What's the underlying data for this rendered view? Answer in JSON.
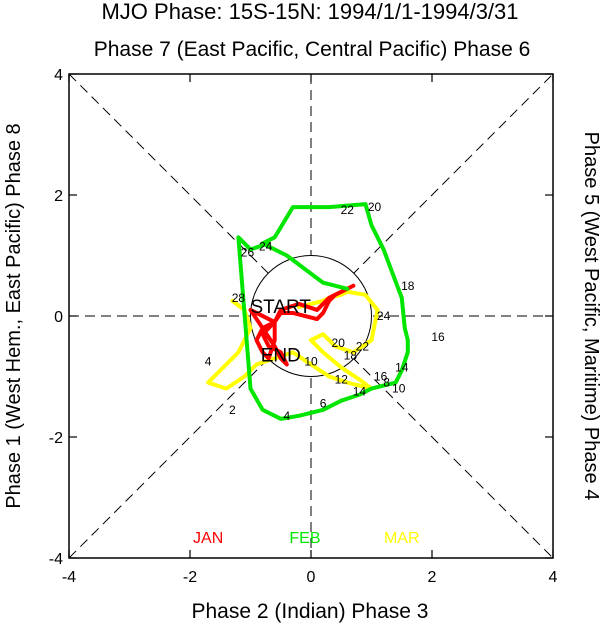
{
  "chart_data": {
    "type": "line",
    "title": "MJO Phase: 15S-15N: 1994/1/1-1994/3/31",
    "top_label": "Phase 7 (East Pacific, Central Pacific) Phase 6",
    "bottom_label": "Phase 2 (Indian) Phase 3",
    "left_label": "Phase 1 (West Hem., East Pacific) Phase 8",
    "right_label": "Phase 5 (West Pacific, Maritime) Phase 4",
    "xlim": [
      -4,
      4
    ],
    "ylim": [
      -4,
      4
    ],
    "x_ticks": [
      "-4",
      "-2",
      "0",
      "2",
      "4"
    ],
    "y_ticks": [
      "-4",
      "-2",
      "0",
      "2",
      "4"
    ],
    "unit_circle_radius": 1,
    "start_label": "START",
    "end_label": "END",
    "series": [
      {
        "name": "JAN",
        "color": "#ff0000",
        "x": [
          0.7,
          0.4,
          0.3,
          0.2,
          0.1,
          -0.1,
          -0.3,
          -0.5,
          -0.6,
          -0.8,
          -0.9,
          -0.8,
          -0.7,
          -0.6,
          -0.6,
          -0.9,
          -1.0,
          -0.8,
          -0.6,
          -0.5,
          -0.4,
          -0.5,
          -0.7,
          -0.8,
          -0.6,
          -0.5,
          -0.2,
          0.1,
          0.3,
          0.5,
          0.6
        ],
        "y": [
          0.5,
          0.35,
          0.25,
          0.05,
          -0.05,
          0.0,
          0.05,
          0.05,
          -0.1,
          -0.2,
          -0.4,
          -0.6,
          -0.7,
          -0.4,
          -0.1,
          0.05,
          0.1,
          -0.2,
          -0.5,
          -0.7,
          -0.8,
          -0.6,
          -0.5,
          -0.3,
          -0.1,
          0.1,
          0.2,
          0.1,
          0.3,
          0.4,
          0.45
        ]
      },
      {
        "name": "FEB",
        "color": "#00e600",
        "x": [
          0.6,
          0.2,
          -0.4,
          -0.8,
          -0.6,
          -0.3,
          0.3,
          0.9,
          1.0,
          1.2,
          1.35,
          1.5,
          1.55,
          1.6,
          1.6,
          1.5,
          1.4,
          1.2,
          1.0,
          0.8,
          0.5,
          0.2,
          0.0,
          -0.2,
          -0.5,
          -0.8,
          -1.0,
          -1.2,
          -1.0,
          -0.7
        ],
        "y": [
          0.45,
          0.55,
          1.0,
          1.2,
          1.3,
          1.8,
          1.8,
          1.85,
          1.5,
          1.1,
          0.7,
          0.3,
          -0.2,
          -0.4,
          -0.6,
          -0.9,
          -1.1,
          -1.15,
          -1.2,
          -1.3,
          -1.4,
          -1.55,
          -1.6,
          -1.65,
          -1.7,
          -1.55,
          -1.2,
          1.3,
          1.1,
          1.2
        ]
      },
      {
        "name": "MAR",
        "color": "#ffff00",
        "x": [
          -1.3,
          -1.1,
          -1.0,
          -1.2,
          -1.5,
          -1.7,
          -1.4,
          -1.1,
          -0.9,
          -0.6,
          -0.3,
          0.0,
          0.3,
          0.6,
          1.0,
          0.8,
          0.5,
          0.2,
          0.0,
          0.2,
          0.4,
          0.7,
          1.0,
          1.1,
          0.9,
          0.6,
          0.5,
          0.3,
          0.2,
          0.0,
          -0.2
        ],
        "y": [
          0.25,
          0.1,
          -0.2,
          -0.6,
          -0.9,
          -1.1,
          -1.2,
          -1.0,
          -0.8,
          -0.7,
          -0.6,
          -0.8,
          -1.0,
          -1.1,
          -1.2,
          -1.05,
          -0.85,
          -0.6,
          -0.4,
          -0.3,
          -0.5,
          -0.6,
          -0.4,
          0.1,
          0.35,
          0.4,
          0.35,
          0.3,
          0.25,
          0.2,
          0.15
        ]
      }
    ],
    "point_labels": [
      {
        "text": "2",
        "x": -1.3,
        "y": -1.55
      },
      {
        "text": "4",
        "x": -0.4,
        "y": -1.65
      },
      {
        "text": "6",
        "x": 0.2,
        "y": -1.45
      },
      {
        "text": "8",
        "x": 1.25,
        "y": -1.1
      },
      {
        "text": "10",
        "x": 1.45,
        "y": -1.2
      },
      {
        "text": "14",
        "x": 1.5,
        "y": -0.85
      },
      {
        "text": "16",
        "x": 2.1,
        "y": -0.35
      },
      {
        "text": "18",
        "x": 1.6,
        "y": 0.5
      },
      {
        "text": "20",
        "x": 1.05,
        "y": 1.8
      },
      {
        "text": "22",
        "x": 0.6,
        "y": 1.75
      },
      {
        "text": "24",
        "x": -0.75,
        "y": 1.15
      },
      {
        "text": "26",
        "x": -1.05,
        "y": 1.05
      },
      {
        "text": "28",
        "x": -1.2,
        "y": 0.3
      },
      {
        "text": "4",
        "x": -1.7,
        "y": -0.75
      },
      {
        "text": "12",
        "x": 0.5,
        "y": -1.05
      },
      {
        "text": "14",
        "x": 0.8,
        "y": -1.25
      },
      {
        "text": "16",
        "x": 1.15,
        "y": -1.0
      },
      {
        "text": "18",
        "x": 0.65,
        "y": -0.65
      },
      {
        "text": "20",
        "x": 0.45,
        "y": -0.45
      },
      {
        "text": "22",
        "x": 0.85,
        "y": -0.5
      },
      {
        "text": "24",
        "x": 1.2,
        "y": 0.0
      },
      {
        "text": "10",
        "x": 0.0,
        "y": -0.75
      }
    ],
    "legend": [
      {
        "label": "JAN",
        "color": "#ff0000"
      },
      {
        "label": "FEB",
        "color": "#00e600"
      },
      {
        "label": "MAR",
        "color": "#ffff00"
      }
    ]
  }
}
